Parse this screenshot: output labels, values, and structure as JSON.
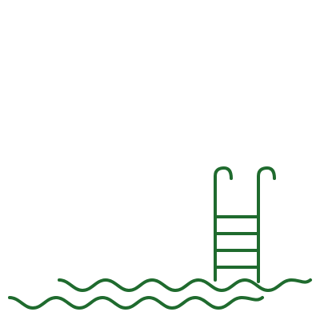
{
  "icon": {
    "name": "swimming-pool-icon",
    "stroke_color": "#1f6b2e",
    "background_color": "#ffffff"
  }
}
